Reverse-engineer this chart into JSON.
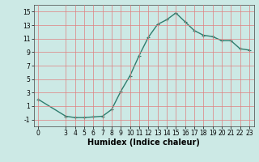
{
  "x": [
    0,
    3,
    4,
    5,
    6,
    7,
    8,
    9,
    10,
    11,
    12,
    13,
    14,
    15,
    16,
    17,
    18,
    19,
    20,
    21,
    22,
    23
  ],
  "y": [
    2,
    -0.5,
    -0.7,
    -0.7,
    -0.6,
    -0.5,
    0.5,
    3.2,
    5.5,
    8.5,
    11.2,
    13.1,
    13.8,
    14.8,
    13.5,
    12.2,
    11.5,
    11.3,
    10.7,
    10.7,
    9.5,
    9.3
  ],
  "line_color": "#2e7d6e",
  "marker": "+",
  "marker_size": 3,
  "bg_color": "#cce9e5",
  "grid_color": "#e08080",
  "xlabel": "Humidex (Indice chaleur)",
  "xlabel_fontsize": 7,
  "ylim": [
    -2,
    16
  ],
  "xlim": [
    -0.5,
    23.5
  ],
  "yticks": [
    -1,
    1,
    3,
    5,
    7,
    9,
    11,
    13,
    15
  ],
  "xticks": [
    0,
    3,
    4,
    5,
    6,
    7,
    8,
    9,
    10,
    11,
    12,
    13,
    14,
    15,
    16,
    17,
    18,
    19,
    20,
    21,
    22,
    23
  ],
  "tick_fontsize": 5.5,
  "line_width": 1.0
}
